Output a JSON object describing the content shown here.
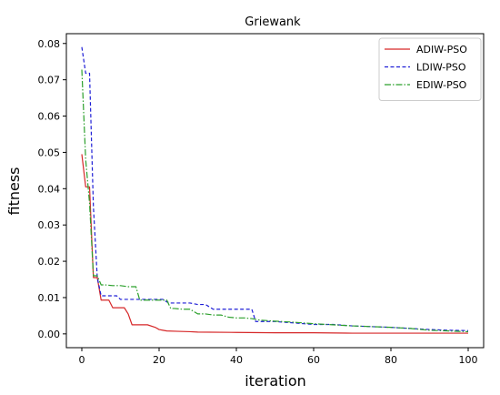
{
  "chart_data": {
    "type": "line",
    "title": "Griewank",
    "xlabel": "iteration",
    "ylabel": "fitness",
    "xlim": [
      -4,
      104
    ],
    "ylim": [
      -0.0038,
      0.0827
    ],
    "xticks": [
      0,
      20,
      40,
      60,
      80,
      100
    ],
    "yticks": [
      0.0,
      0.01,
      0.02,
      0.03,
      0.04,
      0.05,
      0.06,
      0.07,
      0.08
    ],
    "ytick_labels": [
      "0.00",
      "0.01",
      "0.02",
      "0.03",
      "0.04",
      "0.05",
      "0.06",
      "0.07",
      "0.08"
    ],
    "grid": false,
    "legend_position": "upper right",
    "series": [
      {
        "name": "ADIW-PSO",
        "color": "#d62728",
        "style": "solid",
        "x": [
          0,
          1,
          2,
          3,
          4,
          5,
          6,
          7,
          8,
          9,
          10,
          11,
          12,
          13,
          14,
          16,
          17,
          19,
          20,
          21,
          22,
          25,
          28,
          30,
          40,
          50,
          60,
          70,
          80,
          90,
          100
        ],
        "y": [
          0.0495,
          0.0405,
          0.0405,
          0.0155,
          0.0155,
          0.0093,
          0.0093,
          0.0093,
          0.0072,
          0.0072,
          0.0072,
          0.0072,
          0.0055,
          0.0025,
          0.0025,
          0.0025,
          0.0025,
          0.0018,
          0.0012,
          0.001,
          0.0008,
          0.0007,
          0.0006,
          0.0005,
          0.0004,
          0.0003,
          0.0003,
          0.0002,
          0.0002,
          0.0002,
          0.0002
        ]
      },
      {
        "name": "LDIW-PSO",
        "color": "#1f1fd6",
        "style": "dashed",
        "x": [
          0,
          1,
          2,
          3,
          4,
          5,
          6,
          7,
          8,
          9,
          10,
          11,
          12,
          14,
          16,
          18,
          20,
          21,
          22,
          23,
          24,
          26,
          28,
          30,
          32,
          34,
          36,
          38,
          40,
          42,
          44,
          45,
          47,
          50,
          55,
          60,
          65,
          70,
          75,
          80,
          85,
          90,
          95,
          100
        ],
        "y": [
          0.079,
          0.0718,
          0.0718,
          0.035,
          0.0155,
          0.0105,
          0.0105,
          0.0105,
          0.0105,
          0.0105,
          0.0095,
          0.0095,
          0.0095,
          0.0095,
          0.0095,
          0.0095,
          0.0095,
          0.0095,
          0.0088,
          0.0085,
          0.0085,
          0.0085,
          0.0085,
          0.0081,
          0.0081,
          0.0068,
          0.0068,
          0.0068,
          0.0068,
          0.0068,
          0.0068,
          0.0034,
          0.0034,
          0.0034,
          0.003,
          0.0026,
          0.0026,
          0.0022,
          0.002,
          0.0018,
          0.0015,
          0.0012,
          0.001,
          0.0009
        ]
      },
      {
        "name": "EDIW-PSO",
        "color": "#2ca02c",
        "style": "dashdot",
        "x": [
          0,
          1,
          2,
          3,
          4,
          5,
          6,
          8,
          10,
          12,
          14,
          15,
          16,
          18,
          20,
          22,
          23,
          24,
          26,
          28,
          30,
          32,
          34,
          36,
          38,
          40,
          42,
          44,
          46,
          50,
          55,
          60,
          65,
          70,
          75,
          80,
          85,
          90,
          95,
          100
        ],
        "y": [
          0.0728,
          0.048,
          0.036,
          0.016,
          0.016,
          0.0135,
          0.0135,
          0.0133,
          0.0133,
          0.013,
          0.013,
          0.0093,
          0.0093,
          0.0093,
          0.0093,
          0.0093,
          0.007,
          0.007,
          0.0068,
          0.0068,
          0.0055,
          0.0055,
          0.0052,
          0.0052,
          0.0046,
          0.0044,
          0.0044,
          0.0042,
          0.0038,
          0.0035,
          0.0032,
          0.0028,
          0.0025,
          0.0022,
          0.002,
          0.0018,
          0.0015,
          0.001,
          0.0008,
          0.0006
        ]
      }
    ]
  }
}
